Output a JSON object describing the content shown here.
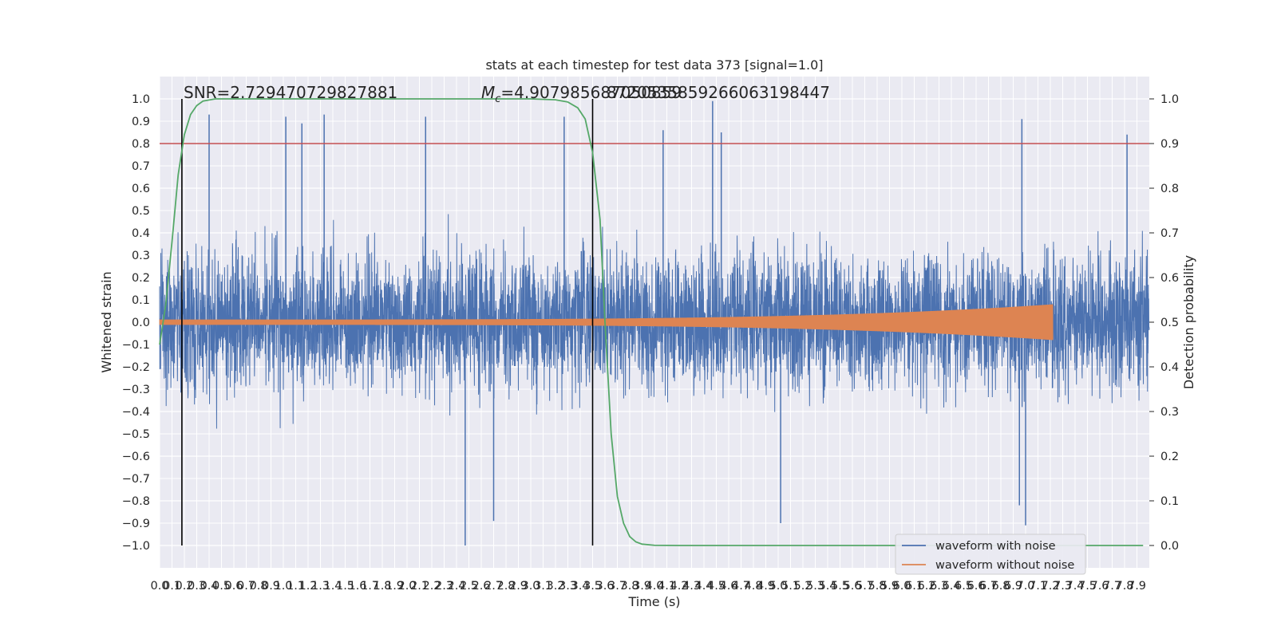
{
  "chart_data": {
    "type": "line",
    "title": "stats at each timestep for test data 373 [signal=1.0]",
    "xlabel": "Time (s)",
    "ylabel": "Whitened strain",
    "y2label": "Detection probability",
    "xlim": [
      0,
      8
    ],
    "ylim": [
      -1.1,
      1.1
    ],
    "y2lim": [
      -0.05,
      1.05
    ],
    "x_ticks": [
      0.0,
      0.1,
      0.2,
      0.3,
      0.4,
      0.5,
      0.6,
      0.7,
      0.8,
      0.9,
      1.0,
      1.1,
      1.2,
      1.3,
      1.4,
      1.5,
      1.6,
      1.7,
      1.8,
      1.9,
      2.0,
      2.1,
      2.2,
      2.3,
      2.4,
      2.5,
      2.6,
      2.7,
      2.8,
      2.9,
      3.0,
      3.1,
      3.2,
      3.3,
      3.4,
      3.5,
      3.6,
      3.7,
      3.8,
      3.9,
      4.0,
      4.1,
      4.2,
      4.3,
      4.4,
      4.5,
      4.6,
      4.7,
      4.8,
      4.9,
      5.0,
      5.1,
      5.2,
      5.3,
      5.4,
      5.5,
      5.6,
      5.7,
      5.8,
      5.9,
      6.0,
      6.1,
      6.2,
      6.3,
      6.4,
      6.5,
      6.6,
      6.7,
      6.8,
      6.9,
      7.0,
      7.1,
      7.2,
      7.3,
      7.4,
      7.5,
      7.6,
      7.7,
      7.8,
      7.9
    ],
    "x_tick_labels": [
      "0.0",
      "0.1",
      "0.2",
      "0.3",
      "0.4",
      "0.5",
      "0.6",
      "0.7",
      "0.8",
      "0.9",
      "1.0",
      "1.1",
      "1.2",
      "1.3",
      "1.4",
      "1.5",
      "1.6",
      "1.7",
      "1.8",
      "1.9",
      "2.0",
      "2.1",
      "2.2",
      "2.3",
      "2.4",
      "2.5",
      "2.6",
      "2.7",
      "2.8",
      "2.9",
      "3.0",
      "3.1",
      "3.2",
      "3.3",
      "3.4",
      "3.5",
      "3.6",
      "3.7",
      "3.8",
      "3.9",
      "4.0",
      "4.1",
      "4.2",
      "4.3",
      "4.4",
      "4.5",
      "4.6",
      "4.7",
      "4.8",
      "4.9",
      "5.0",
      "5.1",
      "5.2",
      "5.3",
      "5.4",
      "5.5",
      "5.6",
      "5.7",
      "5.8",
      "5.9",
      "6.0",
      "6.1",
      "6.2",
      "6.3",
      "6.4",
      "6.5",
      "6.6",
      "6.7",
      "6.8",
      "6.9",
      "7.0",
      "7.1",
      "7.2",
      "7.3",
      "7.4",
      "7.5",
      "7.6",
      "7.7",
      "7.8",
      "7.9"
    ],
    "y_ticks": [
      -1.0,
      -0.9,
      -0.8,
      -0.7,
      -0.6,
      -0.5,
      -0.4,
      -0.3,
      -0.2,
      -0.1,
      0.0,
      0.1,
      0.2,
      0.3,
      0.4,
      0.5,
      0.6,
      0.7,
      0.8,
      0.9,
      1.0
    ],
    "y_tick_labels": [
      "−1.0",
      "−0.9",
      "−0.8",
      "−0.7",
      "−0.6",
      "−0.5",
      "−0.4",
      "−0.3",
      "−0.2",
      "−0.1",
      "0.0",
      "0.1",
      "0.2",
      "0.3",
      "0.4",
      "0.5",
      "0.6",
      "0.7",
      "0.8",
      "0.9",
      "1.0"
    ],
    "y2_ticks": [
      0.0,
      0.1,
      0.2,
      0.3,
      0.4,
      0.5,
      0.6,
      0.7,
      0.8,
      0.9,
      1.0
    ],
    "y2_tick_labels": [
      "0.0",
      "0.1",
      "0.2",
      "0.3",
      "0.4",
      "0.5",
      "0.6",
      "0.7",
      "0.8",
      "0.9",
      "1.0"
    ],
    "annotations": [
      {
        "text": "SNR=2.729470729827881"
      },
      {
        "text": "M_c=4.907985687050859"
      },
      {
        "text": "8720535859266063198447"
      }
    ],
    "vertical_lines_x": [
      0.18,
      3.5
    ],
    "threshold_line_y": 0.9,
    "grid": true,
    "legend_position": "lower-right",
    "series": [
      {
        "name": "waveform with noise",
        "color": "#4c72b0",
        "noise_amplitude": 0.3,
        "peak_points": [
          {
            "x": 0.4,
            "y": 0.93
          },
          {
            "x": 1.02,
            "y": 0.92
          },
          {
            "x": 1.15,
            "y": 0.89
          },
          {
            "x": 1.33,
            "y": 0.93
          },
          {
            "x": 2.15,
            "y": 0.92
          },
          {
            "x": 3.27,
            "y": 0.92
          },
          {
            "x": 4.47,
            "y": 0.99
          },
          {
            "x": 4.07,
            "y": 0.86
          },
          {
            "x": 4.54,
            "y": 0.85
          },
          {
            "x": 6.97,
            "y": 0.91
          },
          {
            "x": 7.82,
            "y": 0.84
          },
          {
            "x": 2.47,
            "y": -1.0
          },
          {
            "x": 2.7,
            "y": -0.89
          },
          {
            "x": 5.02,
            "y": -0.9
          },
          {
            "x": 7.0,
            "y": -0.91
          },
          {
            "x": 6.95,
            "y": -0.82
          }
        ]
      },
      {
        "name": "waveform without noise",
        "color": "#dd8452",
        "chirp_end": 7.22,
        "amplitude_start": 0.012,
        "amplitude_end": 0.08
      },
      {
        "name": "detection probability",
        "color": "#55a868",
        "points": [
          [
            0.0,
            0.45
          ],
          [
            0.05,
            0.54
          ],
          [
            0.1,
            0.68
          ],
          [
            0.15,
            0.83
          ],
          [
            0.2,
            0.92
          ],
          [
            0.25,
            0.965
          ],
          [
            0.3,
            0.985
          ],
          [
            0.35,
            0.995
          ],
          [
            0.45,
            1.0
          ],
          [
            1.0,
            1.0
          ],
          [
            2.0,
            1.0
          ],
          [
            3.0,
            1.0
          ],
          [
            3.2,
            0.998
          ],
          [
            3.3,
            0.993
          ],
          [
            3.38,
            0.98
          ],
          [
            3.44,
            0.955
          ],
          [
            3.5,
            0.88
          ],
          [
            3.56,
            0.73
          ],
          [
            3.6,
            0.5
          ],
          [
            3.65,
            0.25
          ],
          [
            3.7,
            0.11
          ],
          [
            3.75,
            0.05
          ],
          [
            3.8,
            0.02
          ],
          [
            3.85,
            0.008
          ],
          [
            3.9,
            0.003
          ],
          [
            4.0,
            0.0005
          ],
          [
            4.2,
            0.0
          ],
          [
            7.95,
            0.0
          ]
        ]
      }
    ]
  },
  "legend": {
    "items": [
      {
        "label": "waveform with noise",
        "color": "#4c72b0"
      },
      {
        "label": "waveform without noise",
        "color": "#dd8452"
      }
    ]
  }
}
